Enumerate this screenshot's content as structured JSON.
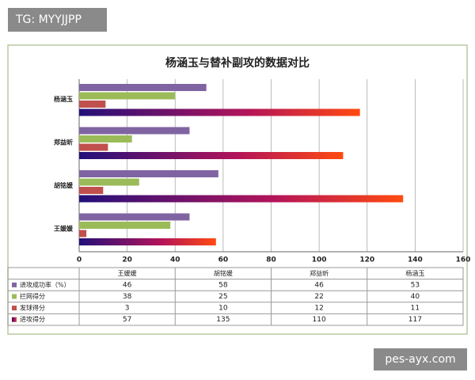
{
  "watermarks": {
    "top": "TG: MYYJJPP",
    "bottom": "pes-ayx.com"
  },
  "chart_data": {
    "type": "hbar",
    "title": "杨涵玉与替补副攻的数据对比",
    "categories": [
      "王媛媛",
      "胡铭媛",
      "郑益昕",
      "杨涵玉"
    ],
    "series": [
      {
        "name": "进攻成功率（%）",
        "color": "#8064a2",
        "values": [
          46,
          58,
          46,
          53
        ]
      },
      {
        "name": "拦网得分",
        "color": "#9bbb59",
        "values": [
          38,
          25,
          22,
          40
        ]
      },
      {
        "name": "发球得分",
        "color": "#c0504d",
        "values": [
          3,
          10,
          12,
          11
        ]
      },
      {
        "name": "进攻得分",
        "color": "#b3145a",
        "values": [
          57,
          135,
          110,
          117
        ]
      }
    ],
    "xlim": [
      0,
      160
    ],
    "xticks": [
      0,
      20,
      40,
      60,
      80,
      100,
      120,
      140,
      160
    ],
    "grid": true
  }
}
